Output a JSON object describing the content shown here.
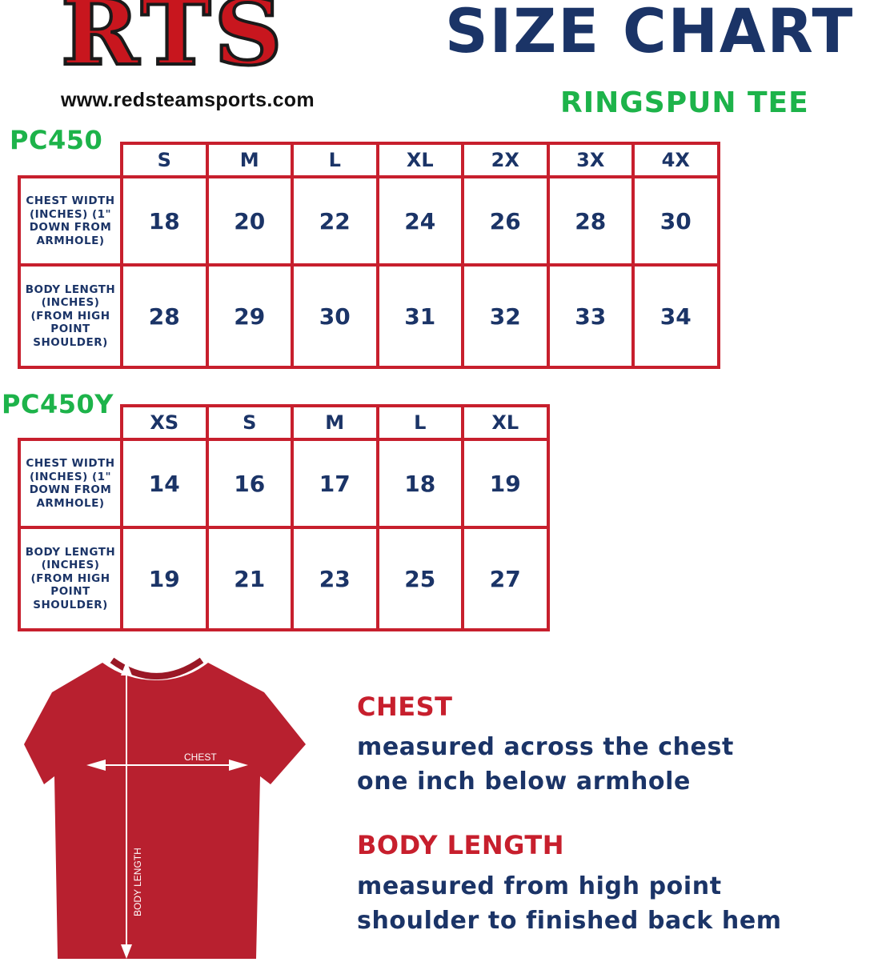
{
  "header": {
    "logo_text": "RTS",
    "url": "www.redsteamsports.com",
    "title": "SIZE CHART",
    "subtitle": "RINGSPUN TEE"
  },
  "tables": [
    {
      "model": "PC450",
      "sizes": [
        "S",
        "M",
        "L",
        "XL",
        "2X",
        "3X",
        "4X"
      ],
      "rows": [
        {
          "label": "CHEST WIDTH (INCHES) (1\" DOWN FROM ARMHOLE)",
          "values": [
            "18",
            "20",
            "22",
            "24",
            "26",
            "28",
            "30"
          ]
        },
        {
          "label": "BODY LENGTH (INCHES) (FROM HIGH POINT SHOULDER)",
          "values": [
            "28",
            "29",
            "30",
            "31",
            "32",
            "33",
            "34"
          ]
        }
      ]
    },
    {
      "model": "PC450Y",
      "sizes": [
        "XS",
        "S",
        "M",
        "L",
        "XL"
      ],
      "rows": [
        {
          "label": "CHEST WIDTH (INCHES) (1\" DOWN FROM ARMHOLE)",
          "values": [
            "14",
            "16",
            "17",
            "18",
            "19"
          ]
        },
        {
          "label": "BODY LENGTH (INCHES) (FROM HIGH POINT SHOULDER)",
          "values": [
            "19",
            "21",
            "23",
            "25",
            "27"
          ]
        }
      ]
    }
  ],
  "diagram": {
    "chest_label": "CHEST",
    "length_label": "BODY LENGTH"
  },
  "notes": {
    "chest_title": "CHEST",
    "chest_line1": "measured across the chest",
    "chest_line2": "one inch below armhole",
    "length_title": "BODY LENGTH",
    "length_line1": "measured from high point",
    "length_line2": "shoulder to finished back hem"
  },
  "colors": {
    "navy": "#1b3467",
    "red": "#c71f2d",
    "green": "#1db34a",
    "shirt": "#b8202f"
  }
}
